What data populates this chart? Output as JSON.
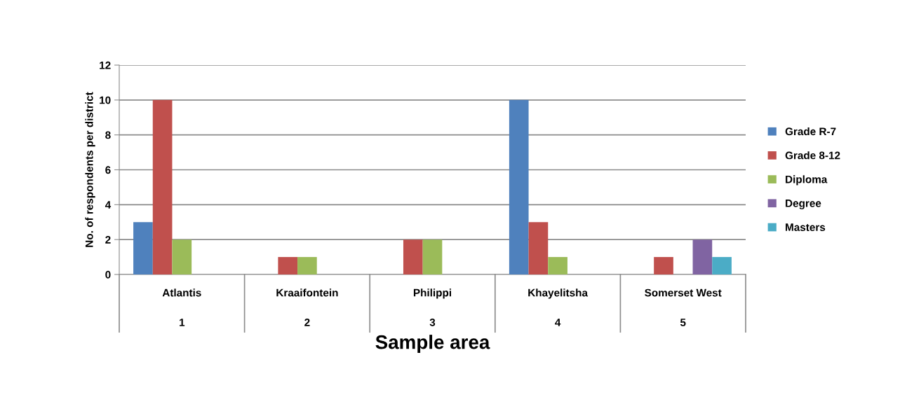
{
  "chart_data": {
    "type": "bar",
    "xlabel": "Sample area",
    "ylabel": "No. of respondents per district",
    "categories": [
      "Atlantis\n1",
      "Kraaifontein\n2",
      "Philippi\n3",
      "Khayelitsha\n4",
      "Somerset West\n5"
    ],
    "series": [
      {
        "name": "Grade R-7",
        "color": "#4f81bd",
        "values": [
          3,
          0,
          0,
          10,
          0
        ]
      },
      {
        "name": "Grade 8-12",
        "color": "#c0504d",
        "values": [
          10,
          1,
          2,
          3,
          1
        ]
      },
      {
        "name": "Diploma",
        "color": "#9bbb59",
        "values": [
          2,
          1,
          2,
          1,
          0
        ]
      },
      {
        "name": "Degree",
        "color": "#8064a2",
        "values": [
          0,
          0,
          0,
          0,
          2
        ]
      },
      {
        "name": "Masters",
        "color": "#4bacc6",
        "values": [
          0,
          0,
          0,
          0,
          1
        ]
      }
    ],
    "ylim": [
      0,
      12
    ],
    "yticks": [
      0,
      2,
      4,
      6,
      8,
      10,
      12
    ],
    "grid": "y",
    "legend": "right"
  }
}
